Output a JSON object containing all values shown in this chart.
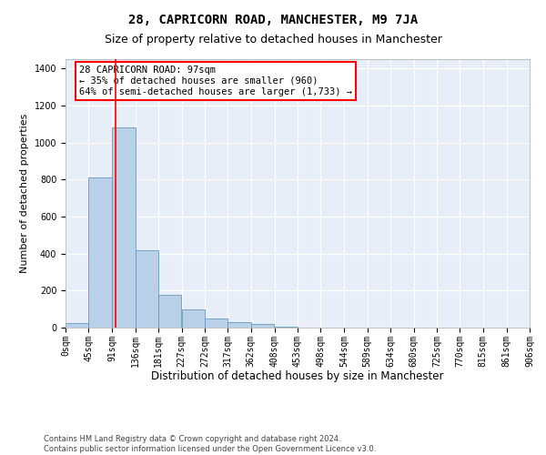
{
  "title": "28, CAPRICORN ROAD, MANCHESTER, M9 7JA",
  "subtitle": "Size of property relative to detached houses in Manchester",
  "xlabel": "Distribution of detached houses by size in Manchester",
  "ylabel": "Number of detached properties",
  "bar_color": "#b8d0e8",
  "bar_edge_color": "#6699bb",
  "background_color": "#e8eef8",
  "grid_color": "#ffffff",
  "red_line_x": 97,
  "annotation_text": "28 CAPRICORN ROAD: 97sqm\n← 35% of detached houses are smaller (960)\n64% of semi-detached houses are larger (1,733) →",
  "bin_edges": [
    0,
    45,
    91,
    136,
    181,
    227,
    272,
    317,
    362,
    408,
    453,
    498,
    544,
    589,
    634,
    680,
    725,
    770,
    815,
    861,
    906
  ],
  "bin_counts": [
    25,
    810,
    1080,
    420,
    175,
    100,
    50,
    30,
    20,
    5,
    2,
    1,
    0,
    0,
    0,
    0,
    0,
    0,
    0,
    0
  ],
  "ylim": [
    0,
    1450
  ],
  "yticks": [
    0,
    200,
    400,
    600,
    800,
    1000,
    1200,
    1400
  ],
  "footer_text": "Contains HM Land Registry data © Crown copyright and database right 2024.\nContains public sector information licensed under the Open Government Licence v3.0.",
  "title_fontsize": 10,
  "subtitle_fontsize": 9,
  "xlabel_fontsize": 8.5,
  "ylabel_fontsize": 8,
  "tick_fontsize": 7,
  "annotation_fontsize": 7.5,
  "footer_fontsize": 6
}
